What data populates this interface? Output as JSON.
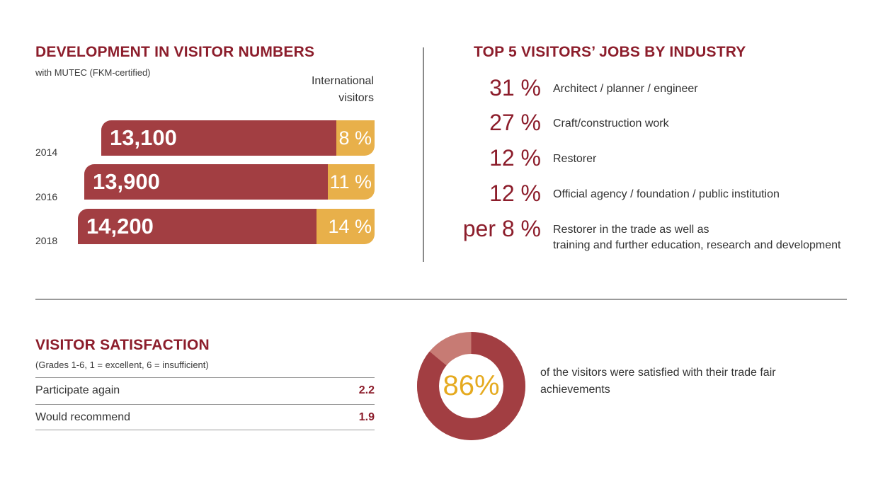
{
  "visitor_numbers": {
    "title": "DEVELOPMENT IN VISITOR NUMBERS",
    "subtitle": "with MUTEC (FKM-certified)",
    "intl_label_line1": "International",
    "intl_label_line2": "visitors",
    "colors": {
      "main": "#a23e42",
      "international": "#e8b04a"
    }
  },
  "jobs": {
    "title": "TOP 5  VISITORS’ JOBS BY INDUSTRY",
    "items": [
      {
        "pct": "31 %",
        "label": "Architect / planner / engineer"
      },
      {
        "pct": "27 %",
        "label": "Craft/construction work"
      },
      {
        "pct": "12 %",
        "label": "Restorer"
      },
      {
        "pct": "12 %",
        "label": "Official agency / foundation / public institution"
      },
      {
        "pct": "per 8 %",
        "label_line1": "Restorer in the trade as well as",
        "label_line2": "training and further education, research and development"
      }
    ]
  },
  "satisfaction": {
    "title": "VISITOR SATISFACTION",
    "subtitle": "(Grades 1-6, 1 = excellent, 6 = insufficient)",
    "rows": [
      {
        "label": "Participate again",
        "value": "2.2"
      },
      {
        "label": "Would recommend",
        "value": "1.9"
      }
    ],
    "donut_value": "86%",
    "donut_caption": "of the visitors were satisfied with their trade fair achievements",
    "colors": {
      "satisfied": "#a23e42",
      "rest": "#c77b74",
      "text": "#e5aa1f"
    }
  },
  "chart_data": [
    {
      "type": "bar",
      "title": "DEVELOPMENT IN VISITOR NUMBERS",
      "subtitle": "with MUTEC (FKM-certified)",
      "categories": [
        "2014",
        "2016",
        "2018"
      ],
      "series": [
        {
          "name": "",
          "values": [
            13100,
            13900,
            14200
          ],
          "labels": [
            "13,100",
            "13,900",
            "14,200"
          ]
        },
        {
          "name": "International visitors",
          "values": [
            8,
            11,
            14
          ],
          "labels": [
            "8 %",
            "11 %",
            "14 %"
          ]
        }
      ]
    },
    {
      "type": "pie",
      "categories": [
        "satisfied",
        ""
      ],
      "values": [
        86,
        14
      ],
      "labels": [
        "86%",
        ""
      ]
    }
  ]
}
